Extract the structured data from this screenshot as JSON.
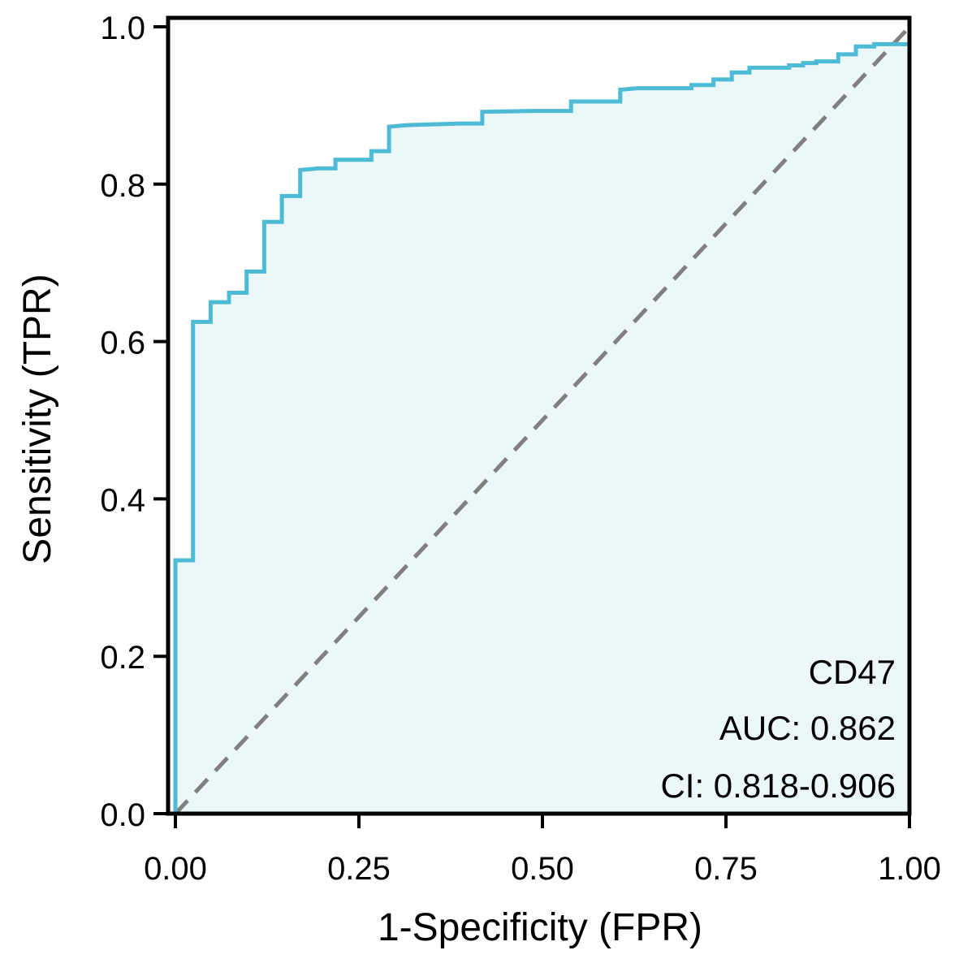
{
  "chart_data": {
    "type": "line",
    "title": "",
    "xlabel": "1-Specificity (FPR)",
    "ylabel": "Sensitivity (TPR)",
    "xlim": [
      0,
      1
    ],
    "ylim": [
      0,
      1
    ],
    "x_ticks": [
      "0.00",
      "0.25",
      "0.50",
      "0.75",
      "1.00"
    ],
    "y_ticks": [
      "0.0",
      "0.2",
      "0.4",
      "0.6",
      "0.8",
      "1.0"
    ],
    "grid": false,
    "annotations": [
      "CD47",
      "AUC: 0.862",
      "CI: 0.818-0.906"
    ],
    "series": [
      {
        "style": "step",
        "color": "#4dbbd5",
        "fill": "#ecf7f9",
        "x": [
          0.0,
          0.0,
          0.024,
          0.024,
          0.048,
          0.048,
          0.073,
          0.073,
          0.097,
          0.097,
          0.121,
          0.121,
          0.145,
          0.145,
          0.17,
          0.17,
          0.194,
          0.218,
          0.218,
          0.267,
          0.267,
          0.291,
          0.291,
          0.315,
          0.388,
          0.418,
          0.418,
          0.485,
          0.539,
          0.539,
          0.582,
          0.606,
          0.606,
          0.63,
          0.703,
          0.703,
          0.733,
          0.733,
          0.758,
          0.758,
          0.782,
          0.782,
          0.836,
          0.836,
          0.855,
          0.855,
          0.873,
          0.873,
          0.903,
          0.903,
          0.927,
          0.927,
          0.952,
          0.952,
          0.976,
          0.976,
          1.0
        ],
        "y": [
          0.0,
          0.322,
          0.322,
          0.625,
          0.625,
          0.65,
          0.65,
          0.662,
          0.662,
          0.689,
          0.689,
          0.752,
          0.752,
          0.785,
          0.785,
          0.818,
          0.82,
          0.82,
          0.831,
          0.831,
          0.842,
          0.842,
          0.873,
          0.875,
          0.877,
          0.877,
          0.892,
          0.893,
          0.893,
          0.905,
          0.905,
          0.905,
          0.92,
          0.922,
          0.922,
          0.926,
          0.926,
          0.933,
          0.933,
          0.942,
          0.942,
          0.948,
          0.948,
          0.951,
          0.951,
          0.954,
          0.954,
          0.956,
          0.956,
          0.965,
          0.965,
          0.975,
          0.975,
          0.978,
          0.978,
          0.978,
          0.978
        ]
      },
      {
        "style": "dashed",
        "color": "#808080",
        "x": [
          0,
          1
        ],
        "y": [
          0,
          1
        ]
      }
    ]
  }
}
